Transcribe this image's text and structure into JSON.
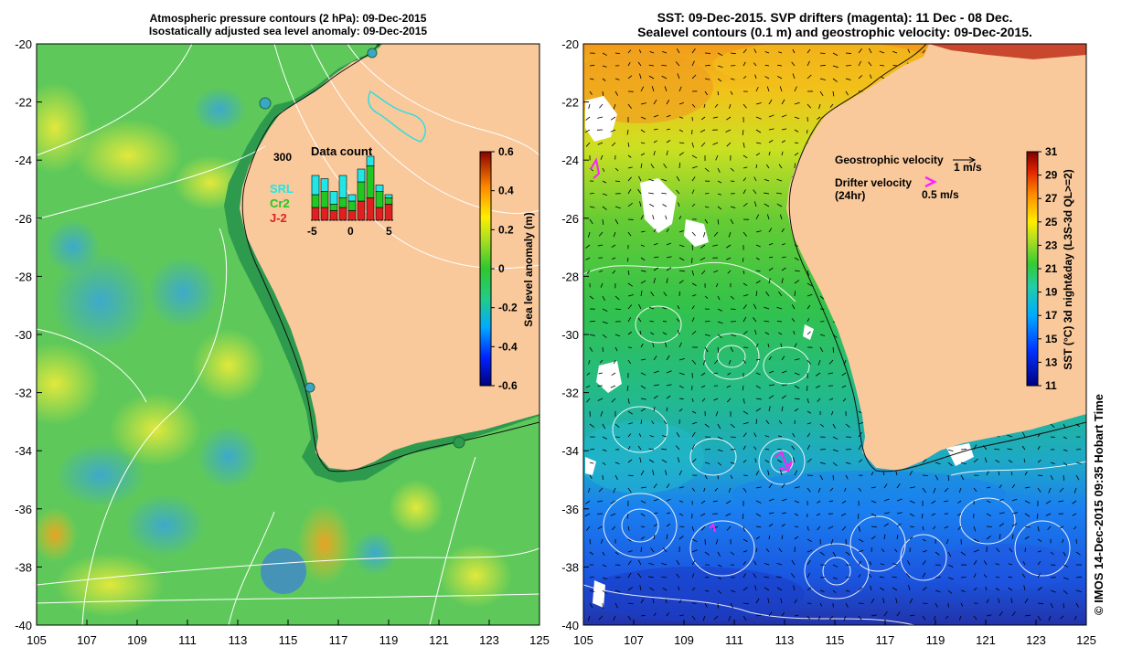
{
  "left_panel": {
    "title_line1": "Atmospheric pressure contours (2 hPa): 09-Dec-2015",
    "title_line2": "Isostatically adjusted sea level anomaly: 09-Dec-2015",
    "y_ticks": [
      "-20",
      "-22",
      "-24",
      "-26",
      "-28",
      "-30",
      "-32",
      "-34",
      "-36",
      "-38",
      "-40"
    ],
    "x_ticks": [
      "105",
      "107",
      "109",
      "111",
      "113",
      "115",
      "117",
      "119",
      "121",
      "123",
      "125"
    ],
    "colorbar": {
      "label": "Sea level anomaly (m)",
      "ticks": [
        "0.6",
        "0.4",
        "0.2",
        "0",
        "-0.2",
        "-0.4",
        "-0.6"
      ]
    },
    "inset": {
      "title": "Data count",
      "y_label": "300",
      "x_ticks": [
        "-5",
        "0",
        "5"
      ],
      "legend": [
        {
          "name": "SRL",
          "color": "#22e6e6"
        },
        {
          "name": "Cr2",
          "color": "#22c822"
        },
        {
          "name": "J-2",
          "color": "#e02020"
        }
      ],
      "bars": [
        {
          "srl": 0.3,
          "cr2": 0.2,
          "j2": 0.2
        },
        {
          "srl": 0.2,
          "cr2": 0.25,
          "j2": 0.2
        },
        {
          "srl": 0.2,
          "cr2": 0.1,
          "j2": 0.15
        },
        {
          "srl": 0.35,
          "cr2": 0.15,
          "j2": 0.2
        },
        {
          "srl": 0.1,
          "cr2": 0.15,
          "j2": 0.15
        },
        {
          "srl": 0.2,
          "cr2": 0.3,
          "j2": 0.3
        },
        {
          "srl": 0.15,
          "cr2": 0.5,
          "j2": 0.35
        },
        {
          "srl": 0.1,
          "cr2": 0.25,
          "j2": 0.2
        },
        {
          "srl": 0.05,
          "cr2": 0.1,
          "j2": 0.25
        }
      ]
    }
  },
  "right_panel": {
    "title_line1": "SST: 09-Dec-2015. SVP drifters (magenta): 11 Dec - 08 Dec.",
    "title_line2": "Sealevel contours (0.1 m) and geostrophic velocity: 09-Dec-2015.",
    "y_ticks": [
      "-20",
      "-22",
      "-24",
      "-26",
      "-28",
      "-30",
      "-32",
      "-34",
      "-36",
      "-38",
      "-40"
    ],
    "x_ticks": [
      "105",
      "107",
      "109",
      "111",
      "113",
      "115",
      "117",
      "119",
      "121",
      "123",
      "125"
    ],
    "legend": {
      "geostrophic_label": "Geostrophic velocity",
      "geostrophic_value": "1 m/s",
      "drifter_label": "Drifter velocity",
      "drifter_sub": "(24hr)",
      "drifter_value": "0.5 m/s"
    },
    "colorbar": {
      "label": "SST (°C) 3d night&day (L3S-3d QL>=2)",
      "ticks": [
        "31",
        "29",
        "27",
        "25",
        "23",
        "21",
        "19",
        "17",
        "15",
        "13",
        "11"
      ]
    }
  },
  "credit": "© IMOS 14-Dec-2015 09:35 Hobart Time",
  "colors": {
    "land": "#f9c99c",
    "sla_green": "#4fc84f",
    "drifter": "#ff22ff",
    "contour": "#ffffff"
  }
}
